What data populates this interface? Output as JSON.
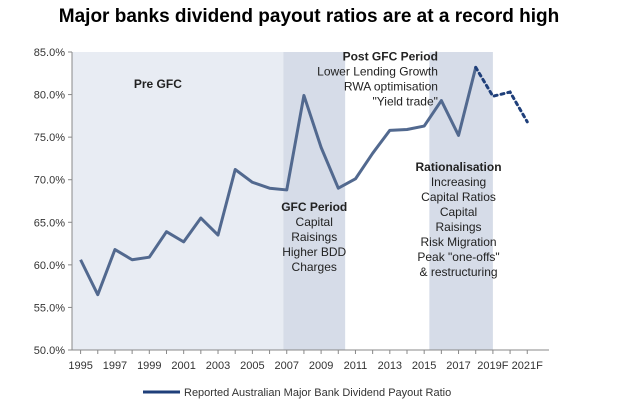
{
  "chart_data": {
    "type": "line",
    "title": "Major banks dividend payout ratios are at a record high",
    "xlabel": "",
    "ylabel": "",
    "x_ticks": [
      "1995",
      "1997",
      "1999",
      "2001",
      "2003",
      "2005",
      "2007",
      "2009",
      "2011",
      "2013",
      "2015",
      "2017",
      "2019F",
      "2021F"
    ],
    "y_ticks": [
      "50.0%",
      "55.0%",
      "60.0%",
      "65.0%",
      "70.0%",
      "75.0%",
      "80.0%",
      "85.0%"
    ],
    "ylim": [
      50,
      85
    ],
    "x_range": [
      1994.5,
      2021.8
    ],
    "grid": false,
    "legend_position": "bottom",
    "series": [
      {
        "name": "Reported Australian Major Bank Dividend Payout Ratio",
        "color": "#52698f",
        "actual": [
          [
            1995,
            60.6
          ],
          [
            1996,
            56.5
          ],
          [
            1997,
            61.8
          ],
          [
            1998,
            60.6
          ],
          [
            1999,
            60.9
          ],
          [
            2000,
            63.9
          ],
          [
            2001,
            62.7
          ],
          [
            2002,
            65.5
          ],
          [
            2003,
            63.5
          ],
          [
            2004,
            71.2
          ],
          [
            2005,
            69.7
          ],
          [
            2006,
            69.0
          ],
          [
            2007,
            68.8
          ],
          [
            2008,
            79.9
          ],
          [
            2009,
            73.8
          ],
          [
            2010,
            69.0
          ],
          [
            2011,
            70.1
          ],
          [
            2012,
            73.1
          ],
          [
            2013,
            75.8
          ],
          [
            2014,
            75.9
          ],
          [
            2015,
            76.3
          ],
          [
            2016,
            79.3
          ],
          [
            2017,
            75.2
          ],
          [
            2018,
            83.2
          ]
        ],
        "forecast": [
          [
            2018,
            83.2
          ],
          [
            2019,
            79.8
          ],
          [
            2020,
            80.3
          ],
          [
            2021,
            76.8
          ]
        ]
      }
    ],
    "shaded_periods": [
      {
        "from": 1994.5,
        "to": 2006.8,
        "color": "#e8ecf3"
      },
      {
        "from": 2006.8,
        "to": 2010.4,
        "color": "#d6dce8"
      },
      {
        "from": 2015.3,
        "to": 2019.0,
        "color": "#d6dce8"
      }
    ],
    "annotations": [
      {
        "lines": [
          "Pre GFC"
        ],
        "bold_first": true,
        "x": 1999.5,
        "y": 80.8,
        "anchor": "middle"
      },
      {
        "lines": [
          "GFC Period",
          "Capital",
          "Raisings",
          "Higher BDD",
          "Charges"
        ],
        "bold_first": true,
        "x": 2008.6,
        "y": 66.3,
        "anchor": "middle"
      },
      {
        "lines": [
          "Post GFC Period",
          "Lower Lending Growth",
          "RWA optimisation",
          "\"Yield trade\""
        ],
        "bold_first": true,
        "x": 2015.8,
        "y": 84.0,
        "anchor": "end"
      },
      {
        "lines": [
          "Rationalisation",
          "Increasing",
          "Capital Ratios",
          "Capital",
          "Raisings",
          "Risk Migration",
          "Peak \"one-offs\"",
          "& restructuring"
        ],
        "bold_first": true,
        "x": 2017.0,
        "y": 71.0,
        "anchor": "middle"
      }
    ]
  }
}
